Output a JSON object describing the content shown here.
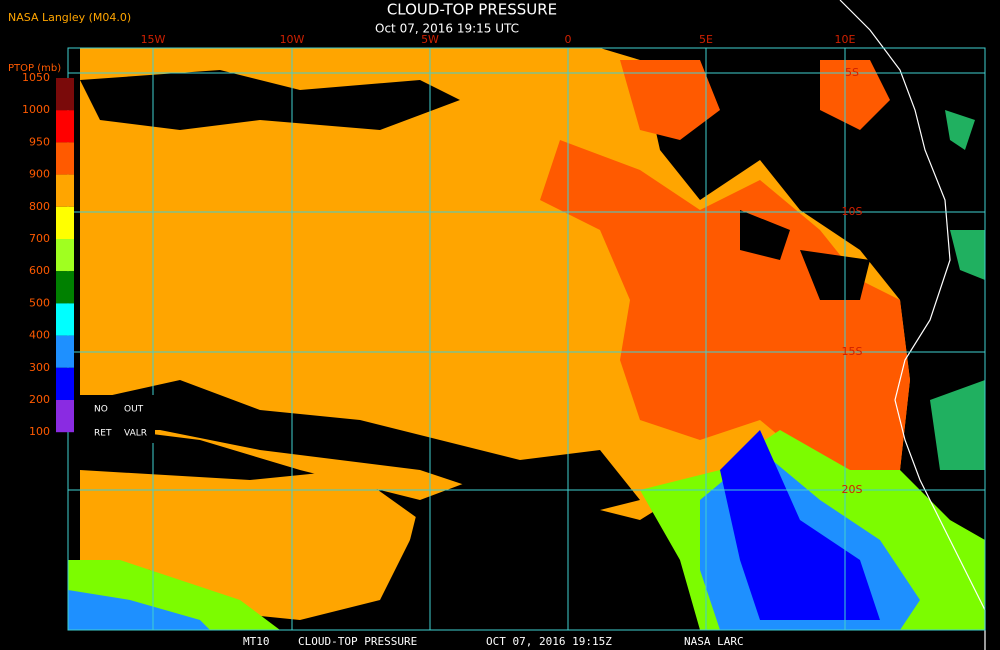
{
  "header": {
    "source": "NASA Langley (M04.0)",
    "title": "CLOUD-TOP PRESSURE",
    "timestamp": "Oct 07, 2016 19:15 UTC"
  },
  "colorbar": {
    "label": "PTOP (mb)",
    "ticks": [
      1050,
      1000,
      950,
      900,
      800,
      700,
      600,
      500,
      400,
      300,
      200,
      100
    ],
    "colors": [
      "#7a0a0a",
      "#ff0000",
      "#ff5a00",
      "#ffa500",
      "#ffff00",
      "#a0ff20",
      "#008000",
      "#00ffff",
      "#1e90ff",
      "#0000ff",
      "#8a2be2"
    ],
    "flags": [
      "NO",
      "OUT",
      "RET",
      "VALR"
    ]
  },
  "map": {
    "longitudes": [
      "15W",
      "10W",
      "5W",
      "0",
      "5E",
      "10E"
    ],
    "latitudes": [
      "5S",
      "10S",
      "15S",
      "20S"
    ]
  },
  "footer": {
    "items": [
      "MT10",
      "CLOUD-TOP PRESSURE",
      "OCT 07, 2016 19:15Z",
      "NASA LARC"
    ]
  }
}
